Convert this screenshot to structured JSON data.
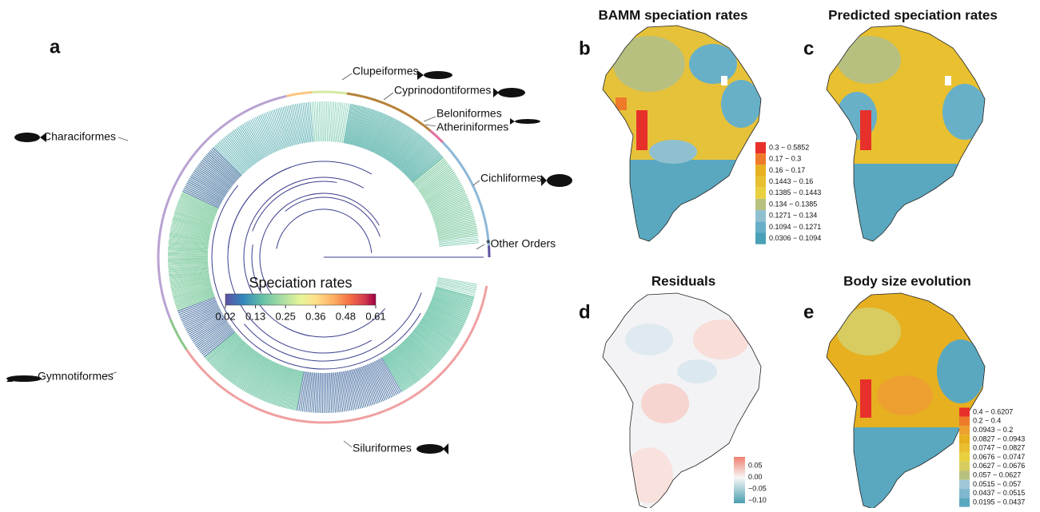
{
  "panels": {
    "a": {
      "letter": "a",
      "colorbar": {
        "title": "Speciation rates",
        "ticks": [
          "0.02",
          "0.13",
          "0.25",
          "0.36",
          "0.48",
          "0.61"
        ]
      },
      "clades": [
        "Clupeiformes",
        "Cyprinodontiformes",
        "Beloniformes",
        "Atheriniformes",
        "Cichliformes",
        "*Other Orders",
        "Characiformes",
        "Gymnotiformes",
        "Siluriformes"
      ]
    },
    "b": {
      "letter": "b",
      "title": "BAMM speciation rates",
      "legend": [
        {
          "label": "0.3 − 0.5852",
          "color": "#e8302a"
        },
        {
          "label": "0.17 − 0.3",
          "color": "#ee7a2a"
        },
        {
          "label": "0.16 − 0.17",
          "color": "#e6b020"
        },
        {
          "label": "0.1443 − 0.16",
          "color": "#e8c030"
        },
        {
          "label": "0.1385 − 0.1443",
          "color": "#e8d040"
        },
        {
          "label": "0.134 − 0.1385",
          "color": "#b8c080"
        },
        {
          "label": "0.1271 − 0.134",
          "color": "#90c0d0"
        },
        {
          "label": "0.1094 − 0.1271",
          "color": "#68b0c8"
        },
        {
          "label": "0.0306 − 0.1094",
          "color": "#4aa0b8"
        }
      ]
    },
    "c": {
      "letter": "c",
      "title": "Predicted speciation rates"
    },
    "d": {
      "letter": "d",
      "title": "Residuals",
      "colorbar_ticks": [
        "0.05",
        "0.00",
        "−0.05",
        "−0.10"
      ]
    },
    "e": {
      "letter": "e",
      "title": "Body size evolution",
      "legend": [
        {
          "label": "0.4 − 0.6207",
          "color": "#e8302a"
        },
        {
          "label": "0.2 − 0.4",
          "color": "#ee7a2a"
        },
        {
          "label": "0.0943 − 0.2",
          "color": "#eda030"
        },
        {
          "label": "0.0827 − 0.0943",
          "color": "#e6b020"
        },
        {
          "label": "0.0747 − 0.0827",
          "color": "#e8c030"
        },
        {
          "label": "0.0676 − 0.0747",
          "color": "#e8d040"
        },
        {
          "label": "0.0627 − 0.0676",
          "color": "#d8cc60"
        },
        {
          "label": "0.057 − 0.0627",
          "color": "#b8c080"
        },
        {
          "label": "0.0515 − 0.057",
          "color": "#a0c8d8"
        },
        {
          "label": "0.0437 − 0.0515",
          "color": "#80b8d0"
        },
        {
          "label": "0.0195 − 0.0437",
          "color": "#5aa8c0"
        }
      ]
    }
  }
}
